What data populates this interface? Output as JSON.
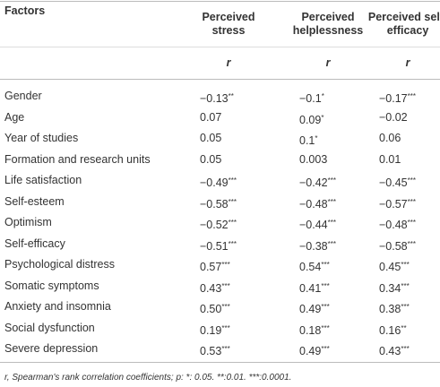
{
  "table": {
    "header": [
      "Factors",
      "Perceived stress",
      "Perceived helplessness",
      "Perceived self-efficacy"
    ],
    "subheader": [
      "r",
      "r",
      "r"
    ],
    "rows": [
      [
        "Gender",
        "−0.13**",
        "−0.1*",
        "−0.17***"
      ],
      [
        "Age",
        "0.07",
        "0.09*",
        "−0.02"
      ],
      [
        "Year of studies",
        "0.05",
        "0.1*",
        "0.06"
      ],
      [
        "Formation and research units",
        "0.05",
        "0.003",
        "0.01"
      ],
      [
        "Life satisfaction",
        "−0.49***",
        "−0.42***",
        "−0.45***"
      ],
      [
        "Self-esteem",
        "−0.58***",
        "−0.48***",
        "−0.57***"
      ],
      [
        "Optimism",
        "−0.52***",
        "−0.44***",
        "−0.48***"
      ],
      [
        "Self-efficacy",
        "−0.51***",
        "−0.38***",
        "−0.58***"
      ],
      [
        "Psychological distress",
        "0.57***",
        "0.54***",
        "0.45***"
      ],
      [
        "Somatic symptoms",
        "0.43***",
        "0.41***",
        "0.34***"
      ],
      [
        "Anxiety and insomnia",
        "0.50***",
        "0.49***",
        "0.38***"
      ],
      [
        "Social dysfunction",
        "0.19***",
        "0.18***",
        "0.16**"
      ],
      [
        "Severe depression",
        "0.53***",
        "0.49***",
        "0.43***"
      ]
    ],
    "footnote": "r, Spearman's rank correlation coefficients; p: *: 0.05. **:0.01. ***:0.0001."
  }
}
